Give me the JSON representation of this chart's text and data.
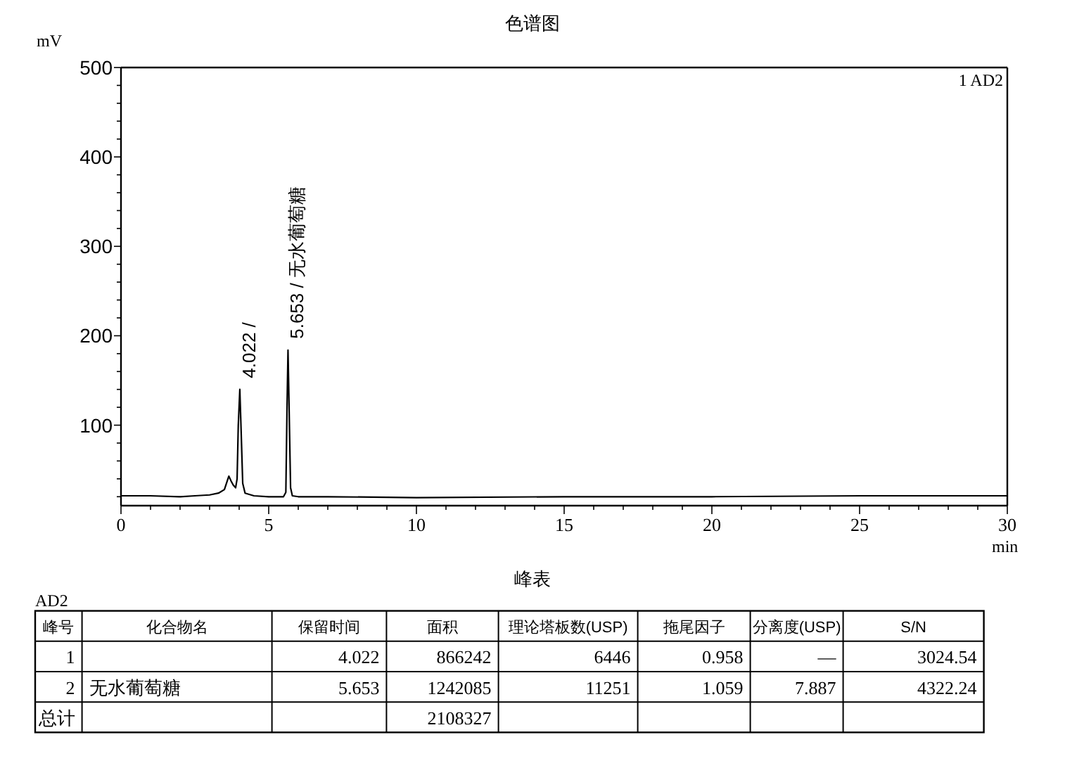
{
  "chart_data": [
    {
      "type": "line",
      "title": "色谱图",
      "xlabel": "min",
      "ylabel": "mV",
      "legend": "top right",
      "x": [
        0,
        1,
        2,
        2.5,
        3,
        3.3,
        3.5,
        3.6,
        3.65,
        3.72,
        3.8,
        3.88,
        3.93,
        3.97,
        4.022,
        4.07,
        4.12,
        4.2,
        4.5,
        5,
        5.5,
        5.58,
        5.62,
        5.653,
        5.69,
        5.74,
        5.8,
        6,
        7,
        10,
        15,
        20,
        25,
        30
      ],
      "series": [
        {
          "name": "1 AD2",
          "color": "#000000",
          "values": [
            21,
            21,
            20,
            21,
            22,
            24,
            28,
            38,
            43,
            38,
            33,
            30,
            40,
            100,
            140,
            90,
            35,
            24,
            21,
            20,
            20,
            25,
            120,
            184,
            120,
            30,
            21,
            20,
            20,
            19,
            20,
            20,
            21,
            21
          ]
        }
      ],
      "xlim": [
        0,
        30
      ],
      "ylim": [
        10,
        500
      ],
      "xticks": [
        0,
        {
          "value": 1,
          "label": null
        },
        {
          "value": 2,
          "label": null
        },
        {
          "value": 3,
          "label": null
        },
        {
          "value": 4,
          "label": null
        },
        5,
        {
          "value": 6,
          "label": null
        },
        {
          "value": 7,
          "label": null
        },
        {
          "value": 8,
          "label": null
        },
        {
          "value": 9,
          "label": null
        },
        10,
        {
          "value": 11,
          "label": null
        },
        {
          "value": 12,
          "label": null
        },
        {
          "value": 13,
          "label": null
        },
        {
          "value": 14,
          "label": null
        },
        15,
        {
          "value": 16,
          "label": null
        },
        {
          "value": 17,
          "label": null
        },
        {
          "value": 18,
          "label": null
        },
        {
          "value": 19,
          "label": null
        },
        20,
        {
          "value": 21,
          "label": null
        },
        {
          "value": 22,
          "label": null
        },
        {
          "value": 23,
          "label": null
        },
        {
          "value": 24,
          "label": null
        },
        25,
        {
          "value": 26,
          "label": null
        },
        {
          "value": 27,
          "label": null
        },
        {
          "value": 28,
          "label": null
        },
        {
          "value": 29,
          "label": null
        },
        30
      ],
      "yticks": [
        {
          "value": 20,
          "label": null
        },
        {
          "value": 40,
          "label": null
        },
        {
          "value": 60,
          "label": null
        },
        {
          "value": 80,
          "label": null
        },
        100,
        {
          "value": 120,
          "label": null
        },
        {
          "value": 140,
          "label": null
        },
        {
          "value": 160,
          "label": null
        },
        {
          "value": 180,
          "label": null
        },
        200,
        {
          "value": 220,
          "label": null
        },
        {
          "value": 240,
          "label": null
        },
        {
          "value": 260,
          "label": null
        },
        {
          "value": 280,
          "label": null
        },
        300,
        {
          "value": 320,
          "label": null
        },
        {
          "value": 340,
          "label": null
        },
        {
          "value": 360,
          "label": null
        },
        {
          "value": 380,
          "label": null
        },
        400,
        {
          "value": 420,
          "label": null
        },
        {
          "value": 440,
          "label": null
        },
        {
          "value": 460,
          "label": null
        },
        {
          "value": 480,
          "label": null
        },
        500
      ],
      "annotations": [
        {
          "text": "4.022 /",
          "x": 4.022,
          "y": 140
        },
        {
          "text": "5.653 / 无水葡萄糖",
          "x": 5.653,
          "y": 184
        }
      ]
    },
    {
      "type": "other",
      "title": "峰表",
      "subtitle": "AD2",
      "categories": [
        "峰号",
        "化合物名",
        "保留时间",
        "面积",
        "理论塔板数(USP)",
        "拖尾因子",
        "分离度(USP)",
        "S/N"
      ],
      "cell_labels": [
        [
          "1",
          null,
          "4.022",
          "866242",
          "6446",
          "0.958",
          "—",
          "3024.54"
        ],
        [
          "2",
          "无水葡萄糖",
          "5.653",
          "1242085",
          "11251",
          "1.059",
          "7.887",
          "4322.24"
        ],
        [
          "总计",
          null,
          null,
          "2108327",
          null,
          null,
          null,
          null
        ]
      ]
    }
  ]
}
